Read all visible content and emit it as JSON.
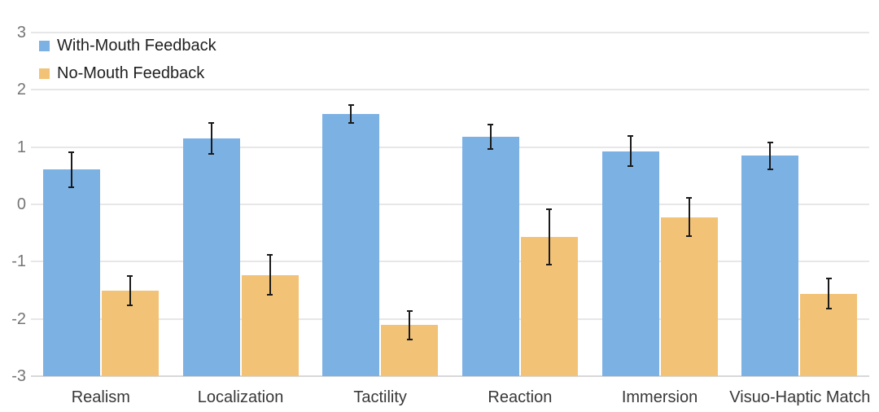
{
  "chart_data": {
    "type": "bar",
    "title": "",
    "categories": [
      "Realism",
      "Localization",
      "Tactility",
      "Reaction",
      "Immersion",
      "Visuo-Haptic Match"
    ],
    "series": [
      {
        "name": "With-Mouth Feedback",
        "color": "#7CB1E4",
        "values": [
          0.61,
          1.15,
          1.58,
          1.18,
          0.93,
          0.85
        ],
        "errors": [
          0.32,
          0.28,
          0.17,
          0.23,
          0.28,
          0.25
        ]
      },
      {
        "name": "No-Mouth Feedback",
        "color": "#F2C377",
        "values": [
          -1.5,
          -1.23,
          -2.11,
          -0.57,
          -0.22,
          -1.56
        ],
        "errors": [
          0.27,
          0.36,
          0.26,
          0.5,
          0.35,
          0.28
        ]
      }
    ],
    "y_ticks": [
      "3",
      "2",
      "1",
      "0",
      "-1",
      "-2",
      "-3"
    ],
    "ylim": [
      -3,
      3
    ],
    "bar_baseline": -3,
    "grid": true,
    "legend_position": "top-left",
    "error_bar_color": "#1a1a1a",
    "gridline_color": "#e7e7e7",
    "tick_label_color": "#757575",
    "category_label_color": "#383838",
    "background_color": "#ffffff"
  }
}
